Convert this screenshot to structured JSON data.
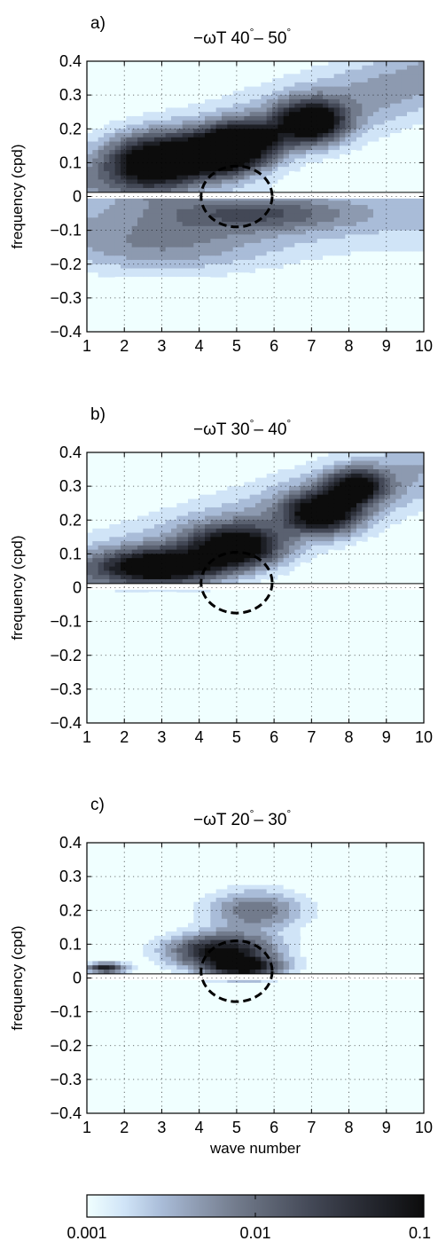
{
  "figure": {
    "colors": {
      "background": "#f0ffff",
      "colormap": [
        "#f0ffff",
        "#d0e4f7",
        "#a9bcd8",
        "#8d9ab0",
        "#727b8c",
        "#5a6170",
        "#434856",
        "#2f323c",
        "#1d1f25",
        "#0c0c0c"
      ],
      "ring": "#000000"
    },
    "scale": "log",
    "colorbar": {
      "ticks": [
        "0.001",
        "0.01",
        "0.1"
      ],
      "range": [
        0.001,
        0.1
      ]
    }
  },
  "chart_data": [
    {
      "type": "heatmap",
      "panel_label": "a)",
      "title": "−ωT  40°– 50°",
      "title_parts": {
        "prefix": "−ωT  40",
        "middle": "– 50",
        "deg": "°"
      },
      "ylabel": "frequency (cpd)",
      "xlabel": "",
      "xlim": [
        1,
        10
      ],
      "ylim": [
        -0.4,
        0.4
      ],
      "xticks": [
        "1",
        "2",
        "3",
        "4",
        "5",
        "6",
        "7",
        "8",
        "9",
        "10"
      ],
      "yticks": [
        "0.4",
        "0.3",
        "0.2",
        "0.1",
        "0",
        "−0.1",
        "−0.2",
        "−0.3",
        "−0.4"
      ],
      "ring": {
        "x": 5,
        "y": 0,
        "rx": 0.95,
        "ry": 0.09
      },
      "features": [
        {
          "x": 2.8,
          "y": 0.1,
          "amp": 0.9,
          "sx": 1.2,
          "sy": 0.08
        },
        {
          "x": 4.6,
          "y": 0.12,
          "amp": 1.0,
          "sx": 1.1,
          "sy": 0.06
        },
        {
          "x": 7.0,
          "y": 0.22,
          "amp": 0.95,
          "sx": 0.9,
          "sy": 0.06
        },
        {
          "x": 5.2,
          "y": 0.17,
          "amp": 0.7,
          "sx": 1.0,
          "sy": 0.05
        },
        {
          "x": 5.5,
          "y": -0.05,
          "amp": 0.4,
          "sx": 2.5,
          "sy": 0.05
        },
        {
          "x": 3.0,
          "y": -0.15,
          "amp": 0.3,
          "sx": 3.0,
          "sy": 0.08
        }
      ],
      "base_pos": 0.35,
      "base_neg": 0.22
    },
    {
      "type": "heatmap",
      "panel_label": "b)",
      "title": "−ωT  30°– 40°",
      "title_parts": {
        "prefix": "−ωT  30",
        "middle": "– 40",
        "deg": "°"
      },
      "ylabel": "frequency (cpd)",
      "xlabel": "",
      "xlim": [
        1,
        10
      ],
      "ylim": [
        -0.4,
        0.4
      ],
      "xticks": [
        "1",
        "2",
        "3",
        "4",
        "5",
        "6",
        "7",
        "8",
        "9",
        "10"
      ],
      "yticks": [
        "0.4",
        "0.3",
        "0.2",
        "0.1",
        "0",
        "−0.1",
        "−0.2",
        "−0.3",
        "−0.4"
      ],
      "ring": {
        "x": 5,
        "y": 0.015,
        "rx": 0.95,
        "ry": 0.09
      },
      "features": [
        {
          "x": 3.0,
          "y": 0.06,
          "amp": 1.0,
          "sx": 1.6,
          "sy": 0.05
        },
        {
          "x": 5.0,
          "y": 0.12,
          "amp": 0.95,
          "sx": 1.2,
          "sy": 0.06
        },
        {
          "x": 7.3,
          "y": 0.22,
          "amp": 0.95,
          "sx": 1.0,
          "sy": 0.06
        },
        {
          "x": 8.2,
          "y": 0.3,
          "amp": 0.8,
          "sx": 0.8,
          "sy": 0.05
        }
      ],
      "base_pos": 0.3,
      "base_neg": 0.0
    },
    {
      "type": "heatmap",
      "panel_label": "c)",
      "title": "−ωT  20°– 30°",
      "title_parts": {
        "prefix": "−ωT  20",
        "middle": "– 30",
        "deg": "°"
      },
      "ylabel": "frequency (cpd)",
      "xlabel": "wave number",
      "xlim": [
        1,
        10
      ],
      "ylim": [
        -0.4,
        0.4
      ],
      "xticks": [
        "1",
        "2",
        "3",
        "4",
        "5",
        "6",
        "7",
        "8",
        "9",
        "10"
      ],
      "yticks": [
        "0.4",
        "0.3",
        "0.2",
        "0.1",
        "0",
        "−0.1",
        "−0.2",
        "−0.3",
        "−0.4"
      ],
      "ring": {
        "x": 5,
        "y": 0.02,
        "rx": 0.95,
        "ry": 0.09
      },
      "features": [
        {
          "x": 4.6,
          "y": 0.08,
          "amp": 0.95,
          "sx": 1.4,
          "sy": 0.05
        },
        {
          "x": 5.2,
          "y": 0.03,
          "amp": 0.85,
          "sx": 1.0,
          "sy": 0.03
        },
        {
          "x": 1.5,
          "y": 0.03,
          "amp": 0.9,
          "sx": 0.5,
          "sy": 0.015
        },
        {
          "x": 5.5,
          "y": 0.2,
          "amp": 0.5,
          "sx": 1.3,
          "sy": 0.06
        }
      ],
      "base_pos": 0.0,
      "base_neg": 0.0
    }
  ]
}
